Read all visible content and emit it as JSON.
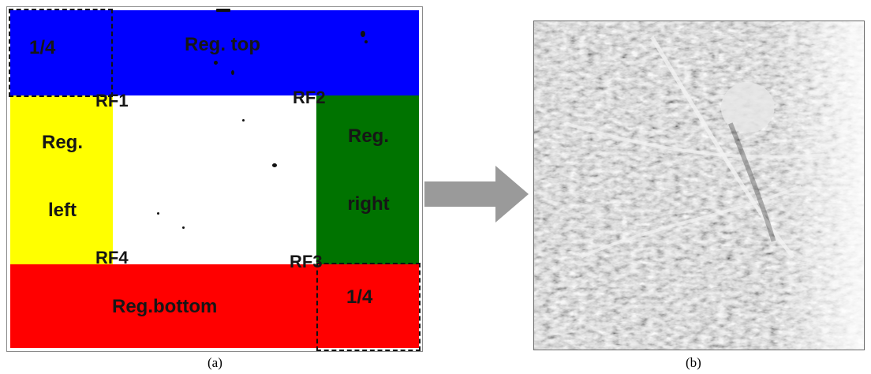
{
  "panel_a": {
    "regions": {
      "top": "Reg. top",
      "left_line1": "Reg.",
      "left_line2": "left",
      "right_line1": "Reg.",
      "right_line2": "right",
      "bottom": "Reg.bottom"
    },
    "quarter_label_tl": "1/4",
    "quarter_label_br": "1/4",
    "reference_points": {
      "rf1": "RF1",
      "rf2": "RF2",
      "rf3": "RF3",
      "rf4": "RF4"
    },
    "colors": {
      "top": "#0000ff",
      "left": "#ffff00",
      "right": "#007300",
      "bottom": "#ff0000",
      "center": "#ffffff"
    }
  },
  "arrow": {
    "color": "#9a9a9a"
  },
  "panel_b": {
    "image": "palmprint (grayscale)"
  },
  "captions": {
    "a": "(a)",
    "b": "(b)"
  }
}
